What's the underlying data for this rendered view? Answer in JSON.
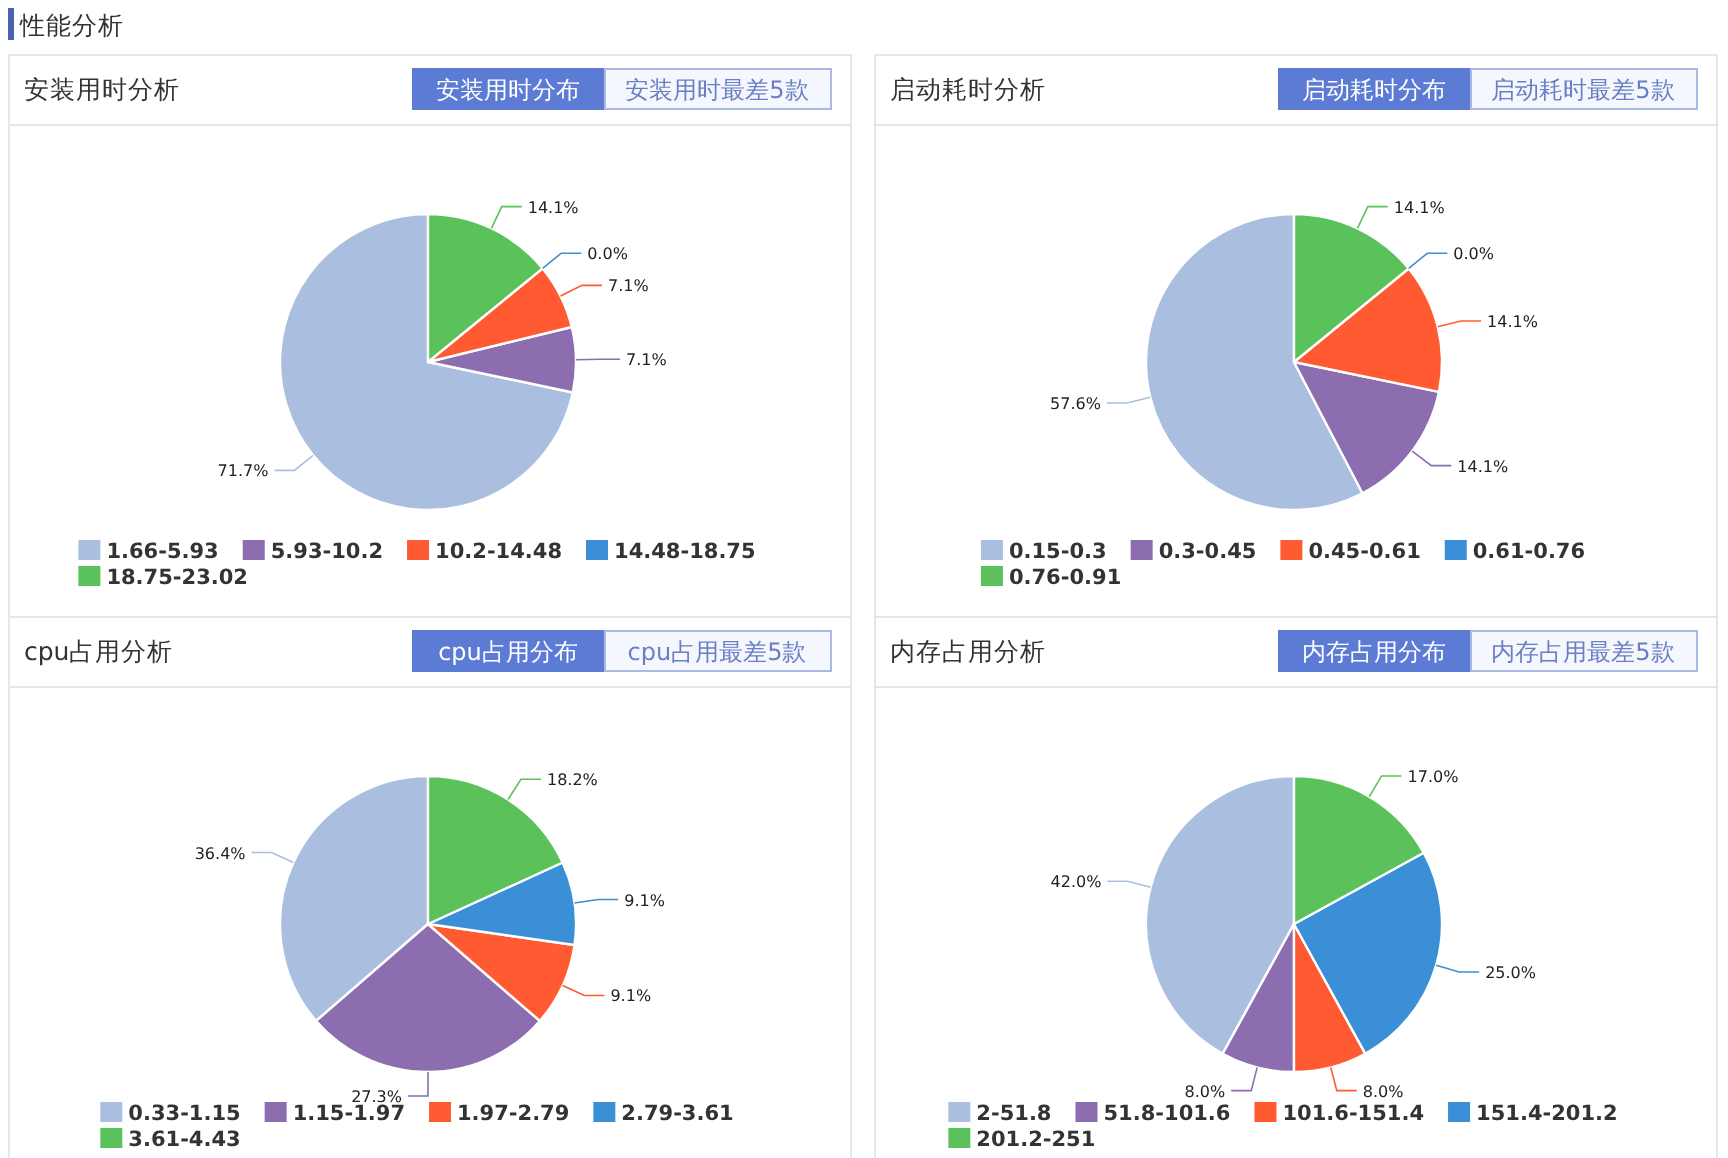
{
  "chart_data": [
    {
      "type": "other",
      "title": "性能分析"
    },
    {
      "type": "pie",
      "title": "安装用时分析",
      "annotations": [
        "安装用时分布",
        "安装用时最差5款"
      ],
      "categories": [
        "1.66-5.93",
        "5.93-10.2",
        "10.2-14.48",
        "14.48-18.75",
        "18.75-23.02"
      ],
      "values": [
        71.7,
        7.1,
        7.1,
        0.0,
        14.1
      ],
      "value_labels": [
        "71.7%",
        "7.1%",
        "7.1%",
        "0.0%",
        "14.1%"
      ],
      "colors": [
        "#aabfdf",
        "#8b6db0",
        "#ff5a31",
        "#3a8fd6",
        "#5bc15b"
      ],
      "legend": "bottom"
    },
    {
      "type": "pie",
      "title": "启动耗时分析",
      "annotations": [
        "启动耗时分布",
        "启动耗时最差5款"
      ],
      "categories": [
        "0.15-0.3",
        "0.3-0.45",
        "0.45-0.61",
        "0.61-0.76",
        "0.76-0.91"
      ],
      "values": [
        57.6,
        14.1,
        14.1,
        0.0,
        14.1
      ],
      "value_labels": [
        "57.6%",
        "14.1%",
        "14.1%",
        "0.0%",
        "14.1%"
      ],
      "colors": [
        "#aabfdf",
        "#8b6db0",
        "#ff5a31",
        "#3a8fd6",
        "#5bc15b"
      ],
      "legend": "bottom"
    },
    {
      "type": "pie",
      "title": "cpu占用分析",
      "annotations": [
        "cpu占用分布",
        "cpu占用最差5款"
      ],
      "categories": [
        "0.33-1.15",
        "1.15-1.97",
        "1.97-2.79",
        "2.79-3.61",
        "3.61-4.43"
      ],
      "values": [
        36.4,
        27.3,
        9.1,
        9.1,
        18.2
      ],
      "value_labels": [
        "36.4%",
        "27.3%",
        "9.1%",
        "9.1%",
        "18.2%"
      ],
      "colors": [
        "#aabfdf",
        "#8b6db0",
        "#ff5a31",
        "#3a8fd6",
        "#5bc15b"
      ],
      "legend": "bottom"
    },
    {
      "type": "pie",
      "title": "内存占用分析",
      "annotations": [
        "内存占用分布",
        "内存占用最差5款"
      ],
      "categories": [
        "2-51.8",
        "51.8-101.6",
        "101.6-151.4",
        "151.4-201.2",
        "201.2-251"
      ],
      "values": [
        42.0,
        8.0,
        8.0,
        25.0,
        17.0
      ],
      "value_labels": [
        "42.0%",
        "8.0%",
        "8.0%",
        "25.0%",
        "17.0%"
      ],
      "colors": [
        "#aabfdf",
        "#8b6db0",
        "#ff5a31",
        "#3a8fd6",
        "#5bc15b"
      ],
      "legend": "bottom"
    }
  ]
}
